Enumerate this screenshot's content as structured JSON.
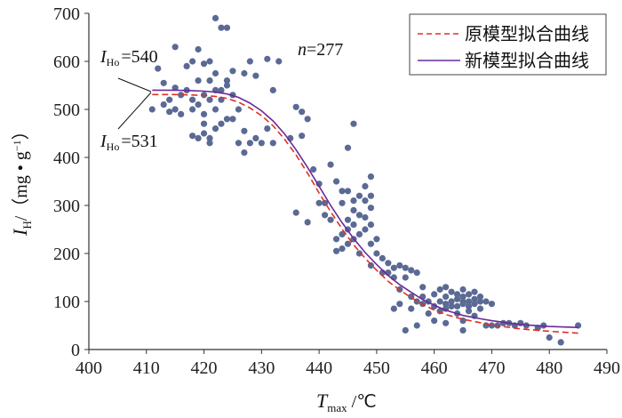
{
  "chart_data": {
    "type": "scatter",
    "xlim": [
      400,
      490
    ],
    "ylim": [
      0,
      700
    ],
    "x_ticks": [
      400,
      410,
      420,
      430,
      440,
      450,
      460,
      470,
      480,
      490
    ],
    "y_ticks": [
      0,
      100,
      200,
      300,
      400,
      500,
      600,
      700
    ],
    "xlabel": {
      "main": "T",
      "sub": "max",
      "unit": " /℃"
    },
    "ylabel": {
      "main": "I",
      "sub": "H",
      "unit": "/（mg • g",
      "sup": "−1",
      "close": "）"
    },
    "annotations": {
      "n": {
        "italic": "n",
        "rest": "=277"
      },
      "iho_new": {
        "main": "I",
        "sub": "Ho",
        "rest": "=540"
      },
      "iho_old": {
        "main": "I",
        "sub": "Ho",
        "rest": "=531"
      }
    },
    "legend": {
      "position": "top-right"
    },
    "colors": {
      "points": "#5a6a94",
      "original": "#e03020",
      "new": "#6a2a9a"
    },
    "series": [
      {
        "name": "原模型拟合曲线",
        "style": "dashed",
        "x": [
          411,
          415,
          418,
          420,
          422,
          424,
          426,
          428,
          430,
          432,
          434,
          436,
          438,
          440,
          442,
          444,
          446,
          448,
          450,
          452,
          454,
          456,
          458,
          460,
          462,
          465,
          468,
          470,
          475,
          480,
          485
        ],
        "y": [
          531,
          531,
          530,
          529,
          527,
          523,
          515,
          503,
          487,
          466,
          438,
          405,
          367,
          326,
          287,
          251,
          218,
          190,
          165,
          142,
          124,
          108,
          94,
          82,
          73,
          63,
          56,
          51,
          43,
          38,
          34
        ]
      },
      {
        "name": "新模型拟合曲线",
        "style": "solid",
        "x": [
          411,
          415,
          418,
          420,
          422,
          424,
          426,
          428,
          430,
          432,
          434,
          436,
          438,
          440,
          442,
          444,
          446,
          448,
          450,
          452,
          454,
          456,
          458,
          460,
          462,
          465,
          468,
          470,
          475,
          480,
          485
        ],
        "y": [
          540,
          540,
          539,
          538,
          536,
          532,
          525,
          513,
          497,
          476,
          449,
          416,
          379,
          340,
          300,
          264,
          231,
          202,
          177,
          154,
          135,
          119,
          104,
          92,
          82,
          71,
          64,
          60,
          52,
          48,
          46
        ]
      }
    ],
    "points": [
      [
        411,
        500
      ],
      [
        412,
        585
      ],
      [
        413,
        510
      ],
      [
        413,
        555
      ],
      [
        414,
        495
      ],
      [
        414,
        520
      ],
      [
        415,
        630
      ],
      [
        415,
        500
      ],
      [
        415,
        545
      ],
      [
        416,
        490
      ],
      [
        416,
        530
      ],
      [
        417,
        540
      ],
      [
        417,
        590
      ],
      [
        418,
        445
      ],
      [
        418,
        500
      ],
      [
        418,
        600
      ],
      [
        418,
        520
      ],
      [
        419,
        440
      ],
      [
        419,
        510
      ],
      [
        419,
        560
      ],
      [
        419,
        625
      ],
      [
        420,
        470
      ],
      [
        420,
        530
      ],
      [
        420,
        595
      ],
      [
        420,
        490
      ],
      [
        420,
        450
      ],
      [
        421,
        440
      ],
      [
        421,
        600
      ],
      [
        421,
        520
      ],
      [
        421,
        560
      ],
      [
        421,
        430
      ],
      [
        422,
        540
      ],
      [
        422,
        690
      ],
      [
        422,
        575
      ],
      [
        422,
        500
      ],
      [
        422,
        460
      ],
      [
        423,
        540
      ],
      [
        423,
        670
      ],
      [
        423,
        520
      ],
      [
        423,
        470
      ],
      [
        424,
        550
      ],
      [
        424,
        670
      ],
      [
        424,
        560
      ],
      [
        424,
        480
      ],
      [
        425,
        480
      ],
      [
        425,
        580
      ],
      [
        425,
        530
      ],
      [
        426,
        430
      ],
      [
        426,
        500
      ],
      [
        427,
        410
      ],
      [
        427,
        455
      ],
      [
        427,
        575
      ],
      [
        428,
        430
      ],
      [
        428,
        600
      ],
      [
        429,
        440
      ],
      [
        429,
        570
      ],
      [
        430,
        430
      ],
      [
        431,
        460
      ],
      [
        431,
        605
      ],
      [
        432,
        430
      ],
      [
        432,
        540
      ],
      [
        433,
        600
      ],
      [
        435,
        440
      ],
      [
        436,
        505
      ],
      [
        436,
        285
      ],
      [
        437,
        495
      ],
      [
        437,
        445
      ],
      [
        438,
        480
      ],
      [
        438,
        265
      ],
      [
        439,
        375
      ],
      [
        440,
        345
      ],
      [
        440,
        305
      ],
      [
        441,
        305
      ],
      [
        441,
        280
      ],
      [
        442,
        385
      ],
      [
        442,
        270
      ],
      [
        443,
        350
      ],
      [
        443,
        230
      ],
      [
        443,
        205
      ],
      [
        444,
        330
      ],
      [
        444,
        240
      ],
      [
        444,
        210
      ],
      [
        444,
        305
      ],
      [
        445,
        420
      ],
      [
        445,
        330
      ],
      [
        445,
        270
      ],
      [
        445,
        250
      ],
      [
        445,
        220
      ],
      [
        446,
        310
      ],
      [
        446,
        290
      ],
      [
        446,
        260
      ],
      [
        446,
        230
      ],
      [
        446,
        470
      ],
      [
        447,
        320
      ],
      [
        447,
        280
      ],
      [
        447,
        240
      ],
      [
        447,
        200
      ],
      [
        448,
        310
      ],
      [
        448,
        340
      ],
      [
        448,
        275
      ],
      [
        448,
        250
      ],
      [
        449,
        360
      ],
      [
        449,
        320
      ],
      [
        449,
        295
      ],
      [
        449,
        260
      ],
      [
        449,
        220
      ],
      [
        449,
        175
      ],
      [
        450,
        230
      ],
      [
        450,
        200
      ],
      [
        451,
        190
      ],
      [
        451,
        160
      ],
      [
        452,
        180
      ],
      [
        452,
        160
      ],
      [
        453,
        150
      ],
      [
        453,
        85
      ],
      [
        453,
        170
      ],
      [
        454,
        175
      ],
      [
        454,
        125
      ],
      [
        454,
        95
      ],
      [
        455,
        170
      ],
      [
        455,
        150
      ],
      [
        455,
        40
      ],
      [
        456,
        110
      ],
      [
        456,
        165
      ],
      [
        456,
        85
      ],
      [
        457,
        160
      ],
      [
        457,
        100
      ],
      [
        457,
        50
      ],
      [
        458,
        110
      ],
      [
        458,
        130
      ],
      [
        458,
        95
      ],
      [
        459,
        100
      ],
      [
        459,
        75
      ],
      [
        460,
        115
      ],
      [
        460,
        90
      ],
      [
        460,
        60
      ],
      [
        461,
        100
      ],
      [
        461,
        125
      ],
      [
        461,
        80
      ],
      [
        462,
        110
      ],
      [
        462,
        95
      ],
      [
        462,
        85
      ],
      [
        462,
        130
      ],
      [
        462,
        55
      ],
      [
        463,
        100
      ],
      [
        463,
        120
      ],
      [
        463,
        90
      ],
      [
        464,
        105
      ],
      [
        464,
        90
      ],
      [
        464,
        115
      ],
      [
        464,
        75
      ],
      [
        465,
        110
      ],
      [
        465,
        95
      ],
      [
        465,
        100
      ],
      [
        465,
        125
      ],
      [
        465,
        60
      ],
      [
        465,
        40
      ],
      [
        466,
        100
      ],
      [
        466,
        90
      ],
      [
        466,
        115
      ],
      [
        466,
        80
      ],
      [
        467,
        120
      ],
      [
        467,
        95
      ],
      [
        467,
        105
      ],
      [
        467,
        70
      ],
      [
        468,
        100
      ],
      [
        468,
        85
      ],
      [
        468,
        110
      ],
      [
        469,
        100
      ],
      [
        469,
        50
      ],
      [
        470,
        50
      ],
      [
        470,
        95
      ],
      [
        471,
        50
      ],
      [
        472,
        55
      ],
      [
        473,
        55
      ],
      [
        474,
        50
      ],
      [
        475,
        55
      ],
      [
        476,
        50
      ],
      [
        478,
        45
      ],
      [
        479,
        50
      ],
      [
        480,
        25
      ],
      [
        482,
        15
      ],
      [
        485,
        50
      ]
    ]
  }
}
